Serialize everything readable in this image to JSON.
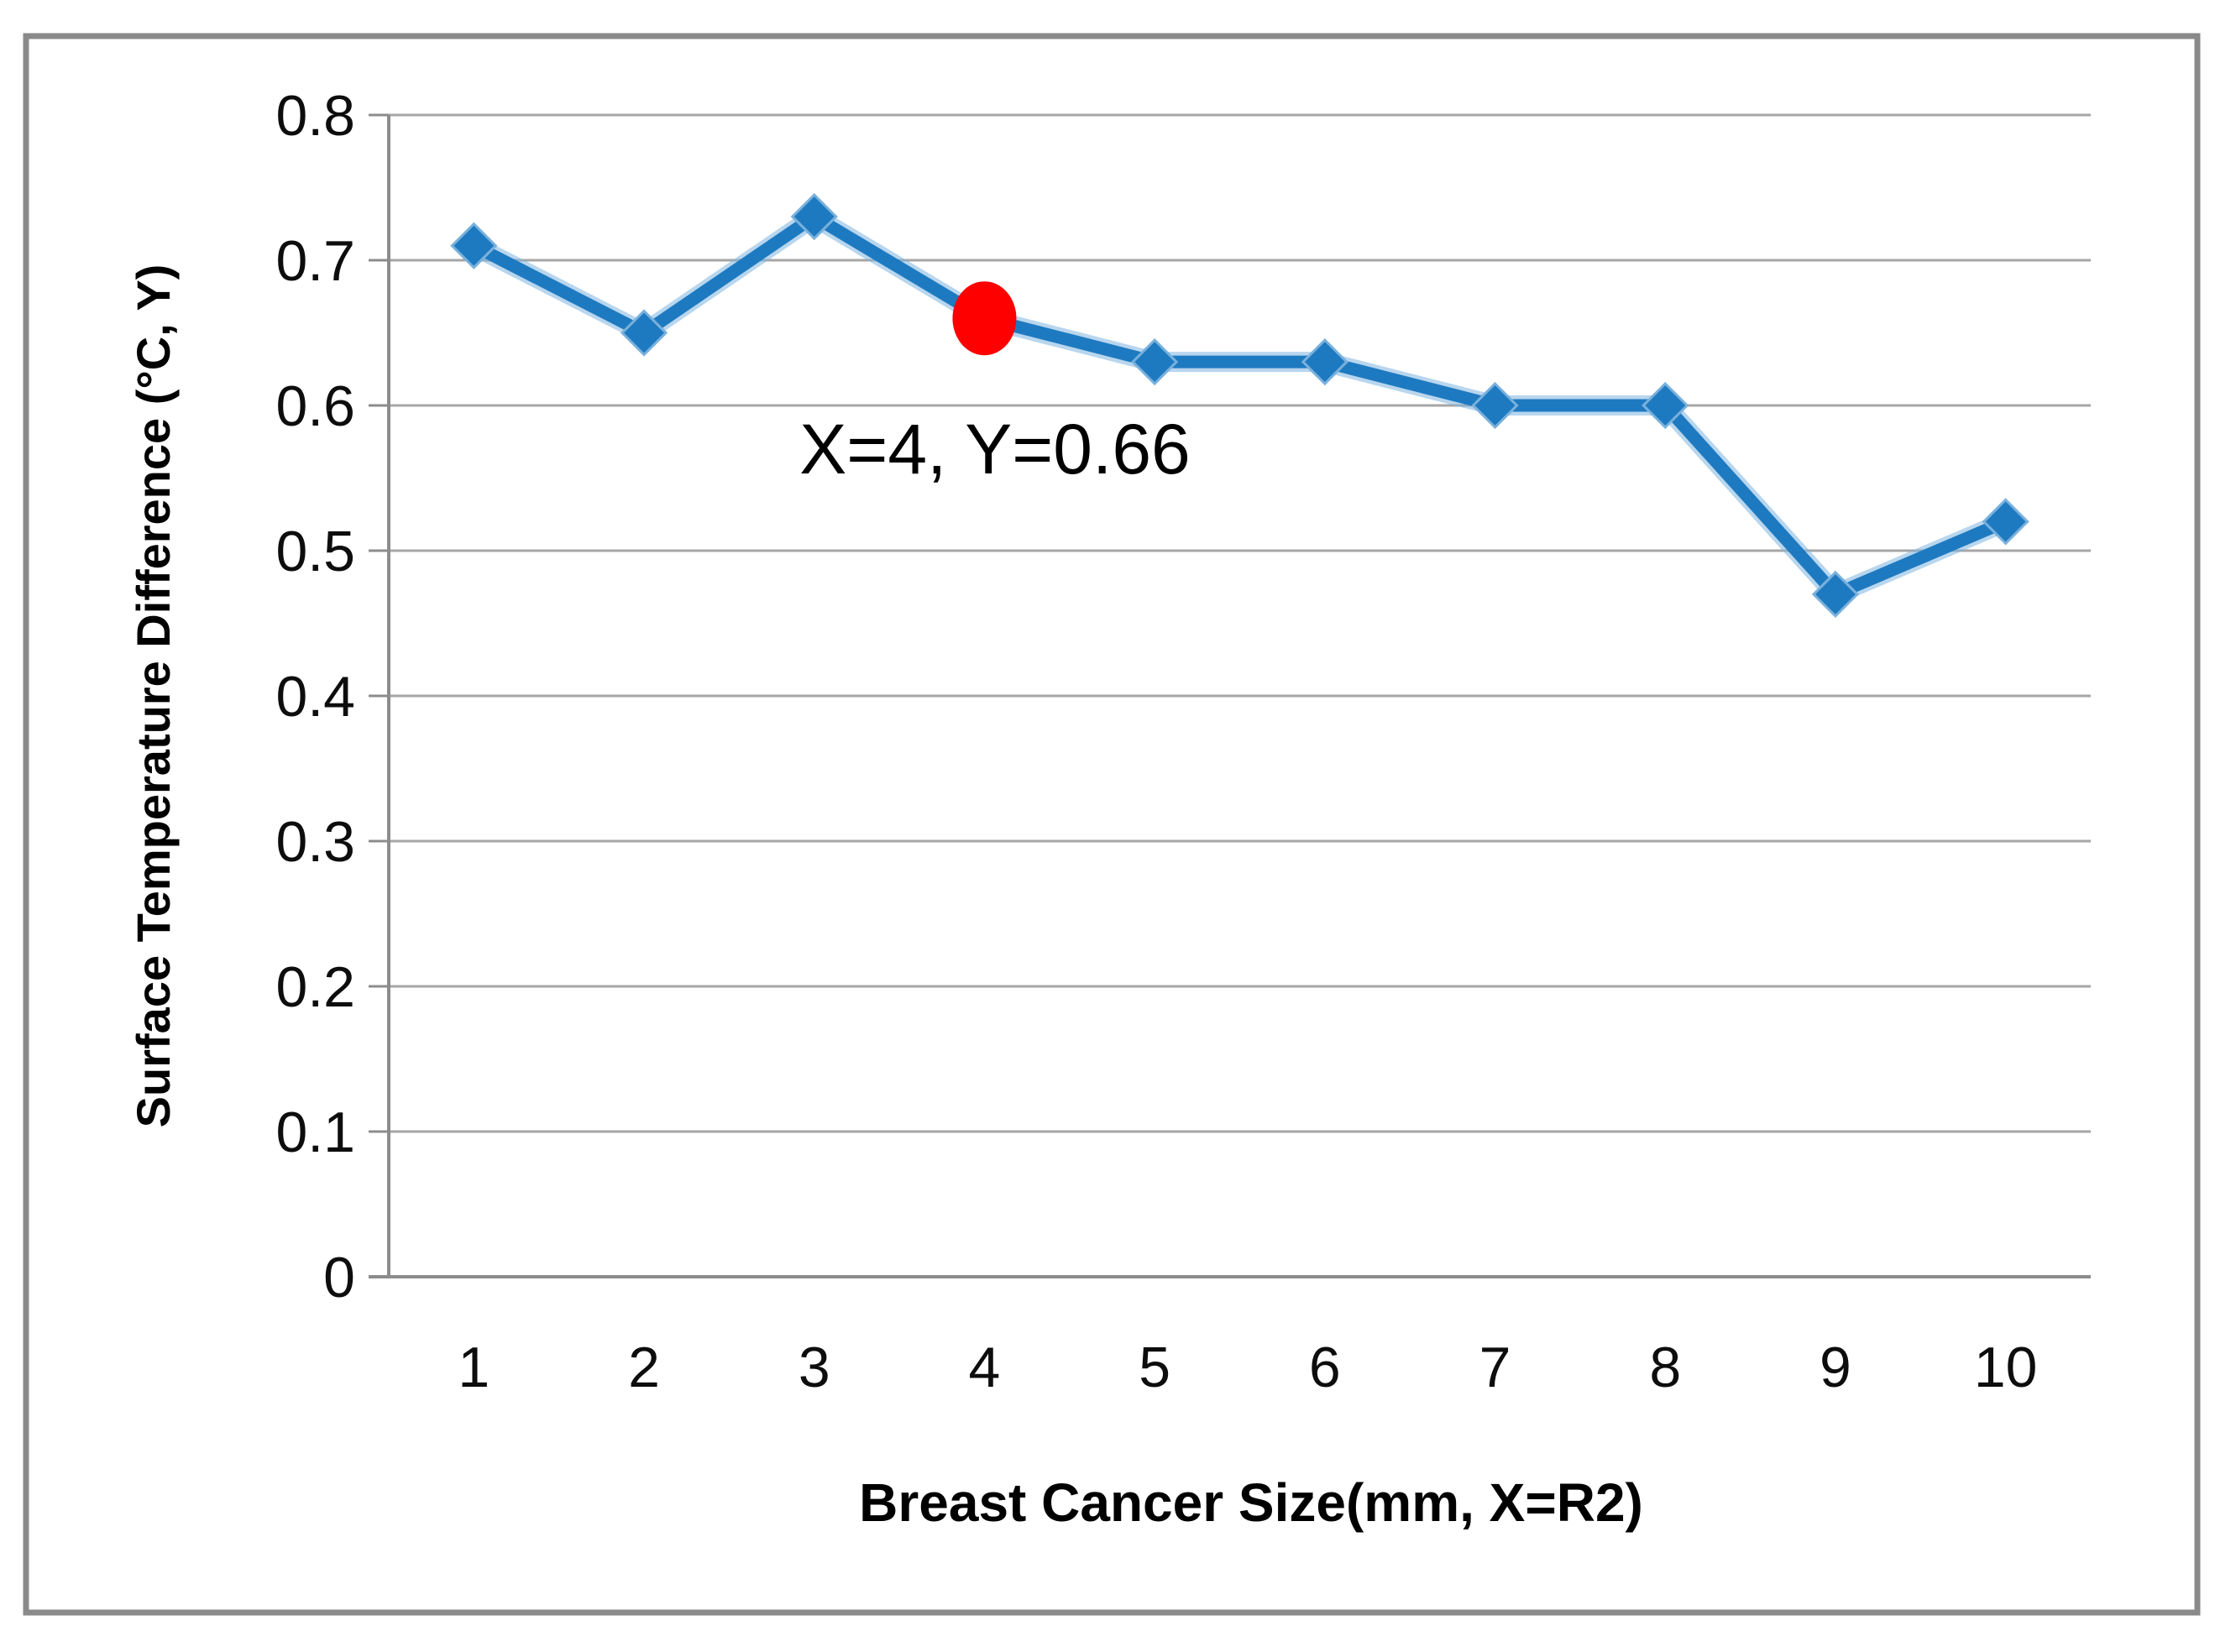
{
  "chart_data": {
    "type": "line",
    "title": "",
    "xlabel": "Breast Cancer Size(mm, X=R2)",
    "ylabel": "Surface Temperature Difference (°C, Y)",
    "x": [
      1,
      2,
      3,
      4,
      5,
      6,
      7,
      8,
      9,
      10
    ],
    "x_tick_labels": [
      "1",
      "2",
      "3",
      "4",
      "5",
      "6",
      "7",
      "8",
      "9",
      "10"
    ],
    "y_tick_labels": [
      "0",
      "0.1",
      "0.2",
      "0.3",
      "0.4",
      "0.5",
      "0.6",
      "0.7",
      "0.8"
    ],
    "ylim": [
      0,
      0.8
    ],
    "y_tick_step": 0.1,
    "grid": true,
    "legend": "none",
    "series": [
      {
        "name": "Surface Temperature Difference",
        "marker": "diamond",
        "values": [
          0.71,
          0.65,
          0.73,
          0.66,
          0.63,
          0.63,
          0.6,
          0.6,
          0.47,
          0.52
        ]
      }
    ],
    "highlight_point": {
      "x": 4,
      "y": 0.66,
      "marker": "circle"
    },
    "annotation": {
      "text": "X=4, Y=0.66",
      "anchor_x": 4,
      "anchor_y": 0.66
    }
  },
  "colors": {
    "line": "#1e7ac0",
    "line_halo": "#7db4e0",
    "marker_fill": "#1e7ac0",
    "marker_stroke": "#79b1dd",
    "highlight": "#fe0000",
    "grid": "#a6a6a6",
    "axis": "#8c8c8c",
    "text": "#000000",
    "frame_border": "#8a8a8a",
    "background": "#ffffff"
  }
}
